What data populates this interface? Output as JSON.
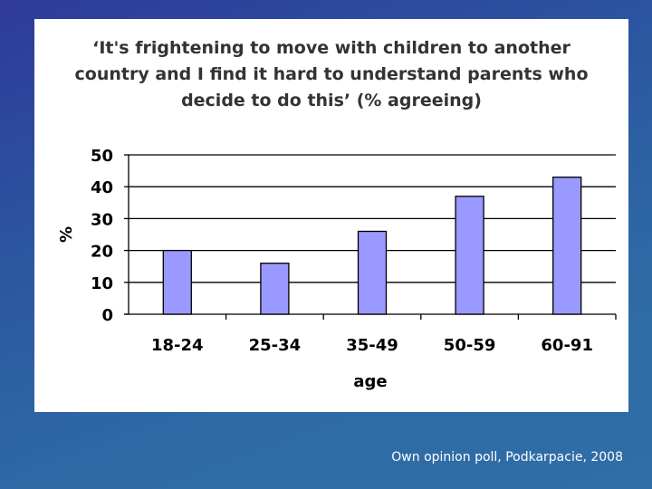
{
  "chart_data": {
    "type": "bar",
    "title_lines": [
      "‘It's frightening to move with children to another",
      "country and I find it hard to understand parents who",
      "decide to do this’ (% agreeing)"
    ],
    "categories": [
      "18-24",
      "25-34",
      "35-49",
      "50-59",
      "60-91"
    ],
    "values": [
      20,
      16,
      26,
      37,
      43
    ],
    "xlabel": "age",
    "ylabel": "%",
    "ylim": [
      0,
      50
    ],
    "yticks": [
      "0",
      "10",
      "20",
      "30",
      "40",
      "50"
    ],
    "grid": true,
    "bar_color": "#9999ff"
  },
  "source_note": "Own opinion poll, Podkarpacie, 2008"
}
